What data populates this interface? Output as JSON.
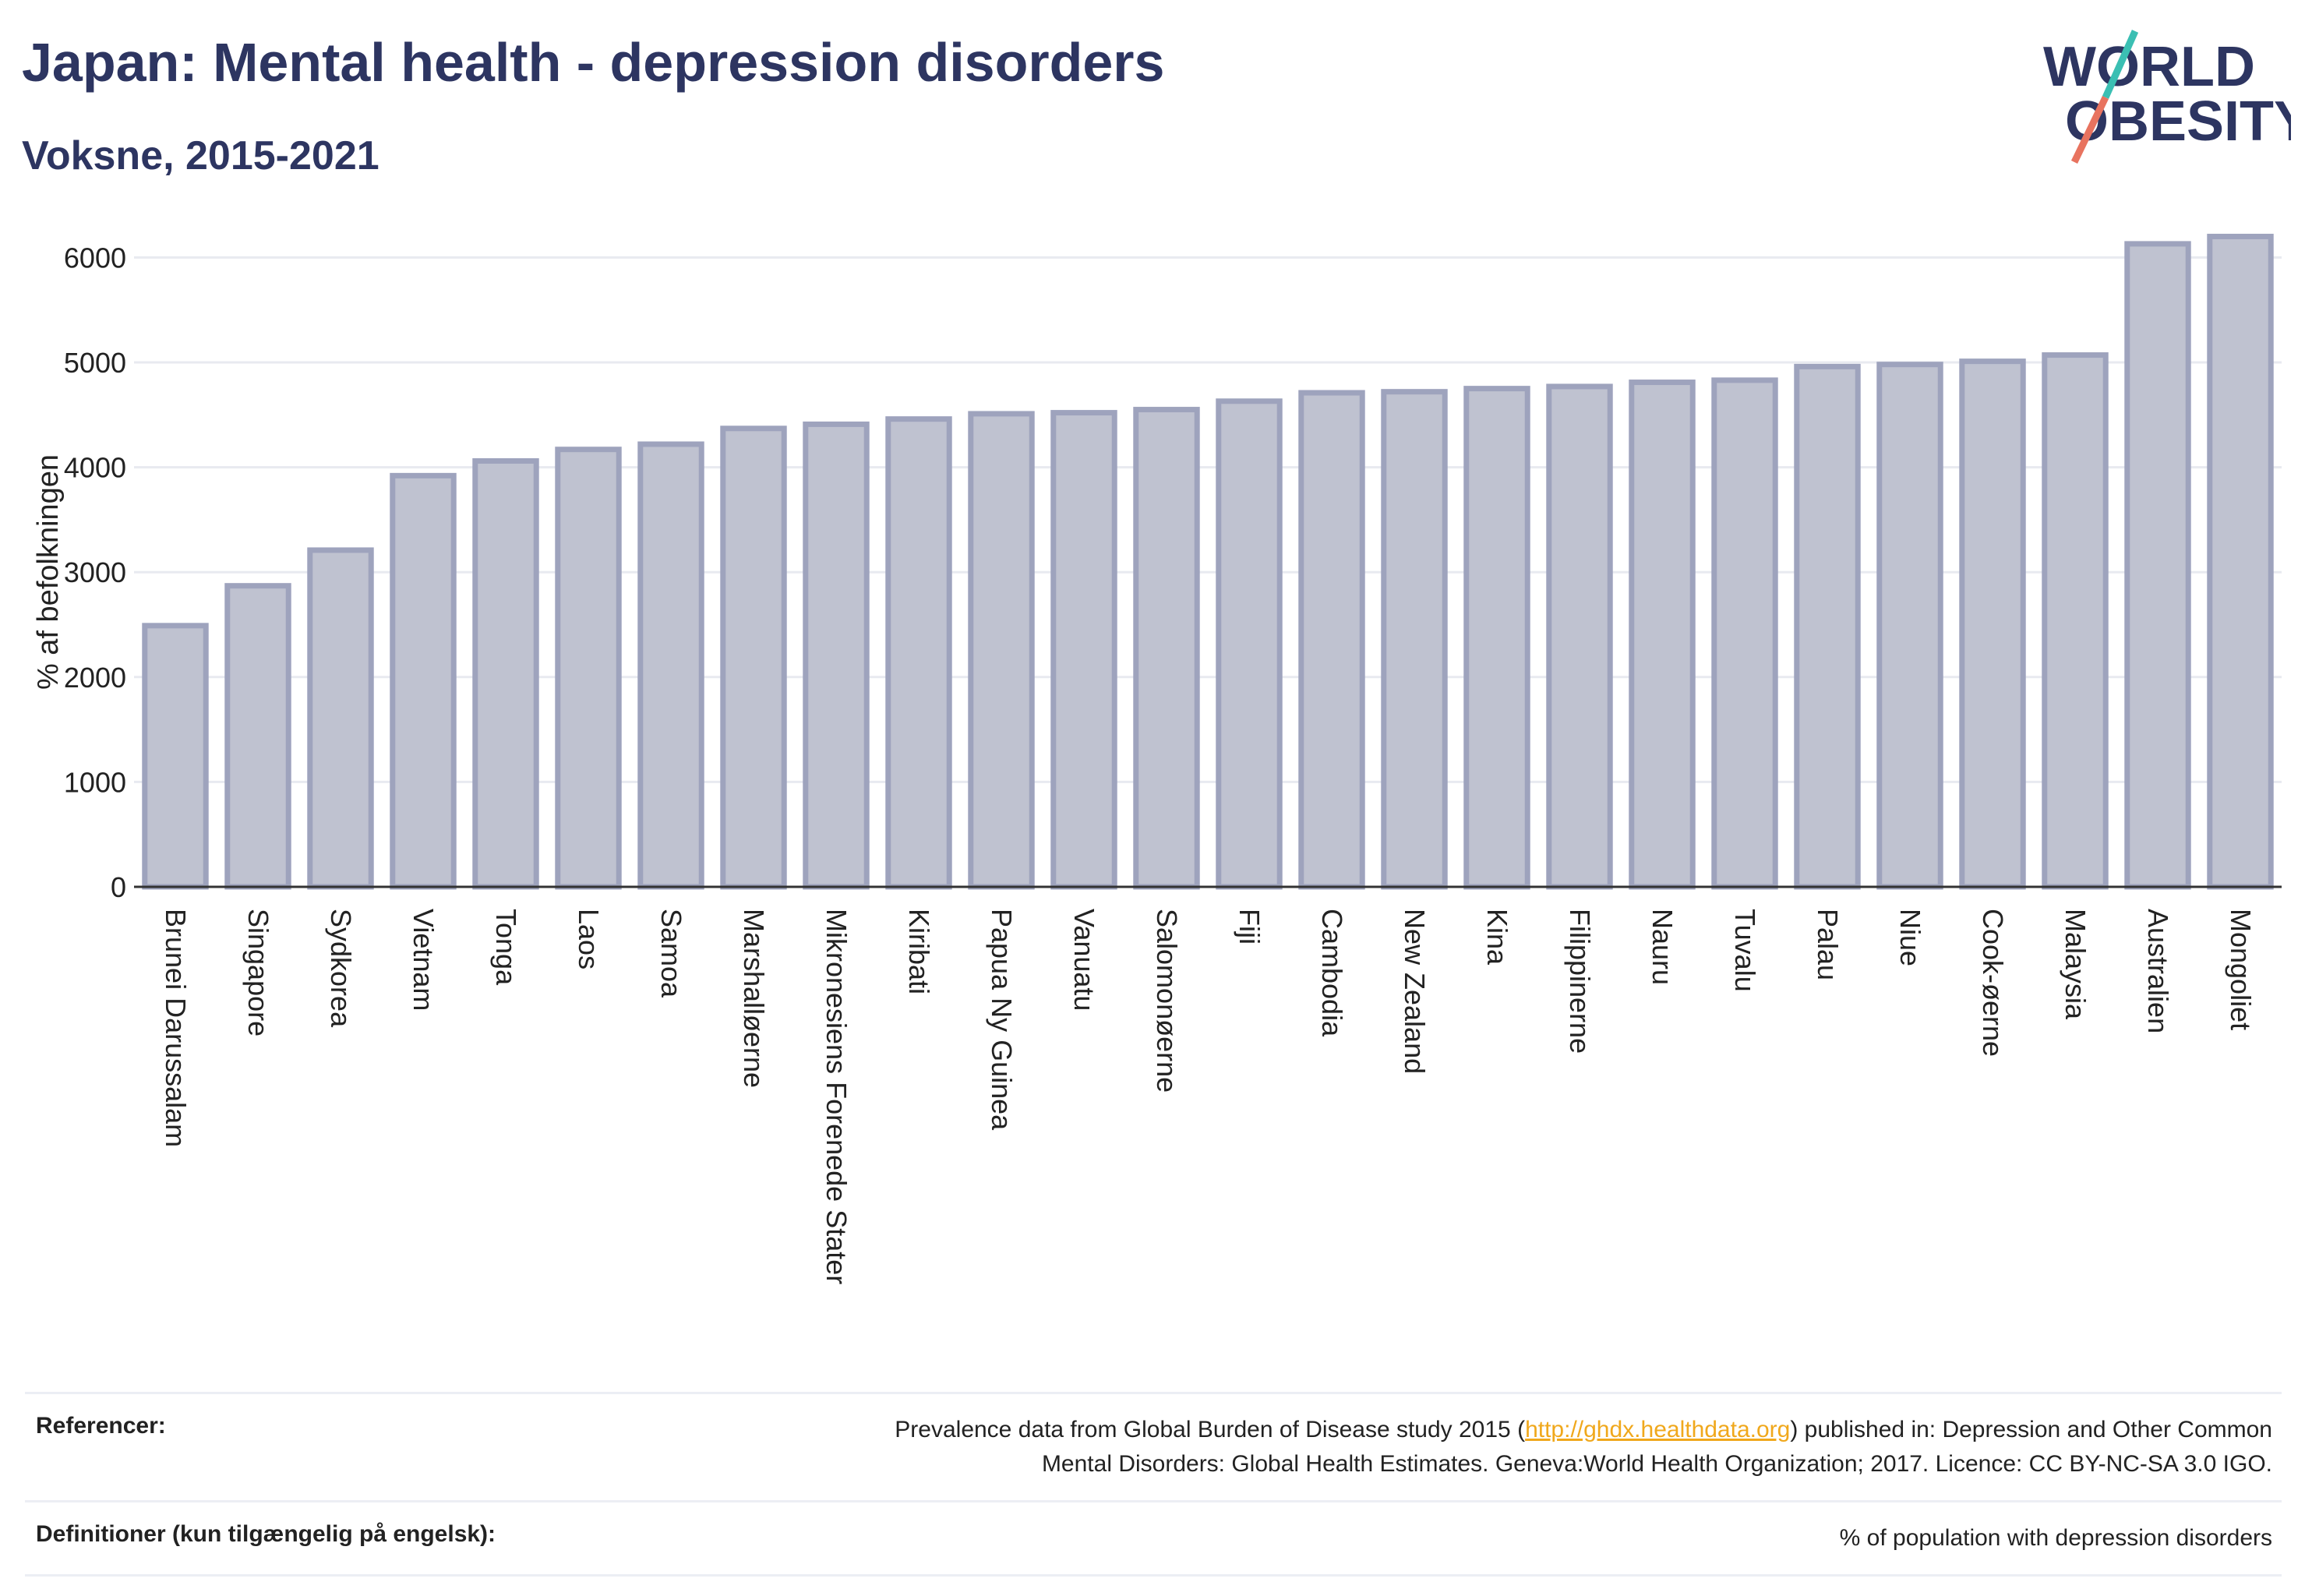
{
  "header": {
    "title": "Japan: Mental health - depression disorders",
    "subtitle": "Voksne, 2015-2021"
  },
  "logo": {
    "line1": "WORLD",
    "line2": "OBESITY",
    "colors": {
      "text": "#2d3561",
      "slash_teal": "#3bbfb3",
      "slash_coral": "#e8735f"
    }
  },
  "colors": {
    "bar_fill": "#bfc2d0",
    "bar_stroke": "#9ea3bd",
    "text_dark": "#2d3561",
    "grid": "#e8eaf0",
    "link": "#f0a81c"
  },
  "chart_data": {
    "type": "bar",
    "ylabel": "% af befolkningen",
    "xlabel": "",
    "ylim": [
      0,
      6300
    ],
    "yticks": [
      0,
      1000,
      2000,
      3000,
      4000,
      5000,
      6000
    ],
    "grid": true,
    "categories": [
      "Brunei Darussalam",
      "Singapore",
      "Sydkorea",
      "Vietnam",
      "Tonga",
      "Laos",
      "Samoa",
      "Marshalløerne",
      "Mikronesiens Forenede Stater",
      "Kiribati",
      "Papua Ny Guinea",
      "Vanuatu",
      "Salomonøerne",
      "Fiji",
      "Cambodia",
      "New Zealand",
      "Kina",
      "Filippinerne",
      "Nauru",
      "Tuvalu",
      "Palau",
      "Niue",
      "Cook-øerne",
      "Malaysia",
      "Australien",
      "Mongoliet"
    ],
    "values": [
      2490,
      2870,
      3210,
      3920,
      4060,
      4170,
      4220,
      4370,
      4410,
      4460,
      4510,
      4520,
      4550,
      4630,
      4710,
      4720,
      4750,
      4770,
      4810,
      4830,
      4960,
      4980,
      5010,
      5070,
      6130,
      6200
    ]
  },
  "references": {
    "label": "Referencer:",
    "text_before": "Prevalence data from Global Burden of Disease study 2015 (",
    "link": "http://ghdx.healthdata.org",
    "text_after": ") published in: Depression and Other Common",
    "line2": "Mental Disorders: Global Health Estimates. Geneva:World Health Organization; 2017. Licence: CC BY-NC-SA 3.0 IGO."
  },
  "definitions": {
    "label": "Definitioner (kun tilgængelig på engelsk):",
    "text": "% of population with depression disorders"
  }
}
